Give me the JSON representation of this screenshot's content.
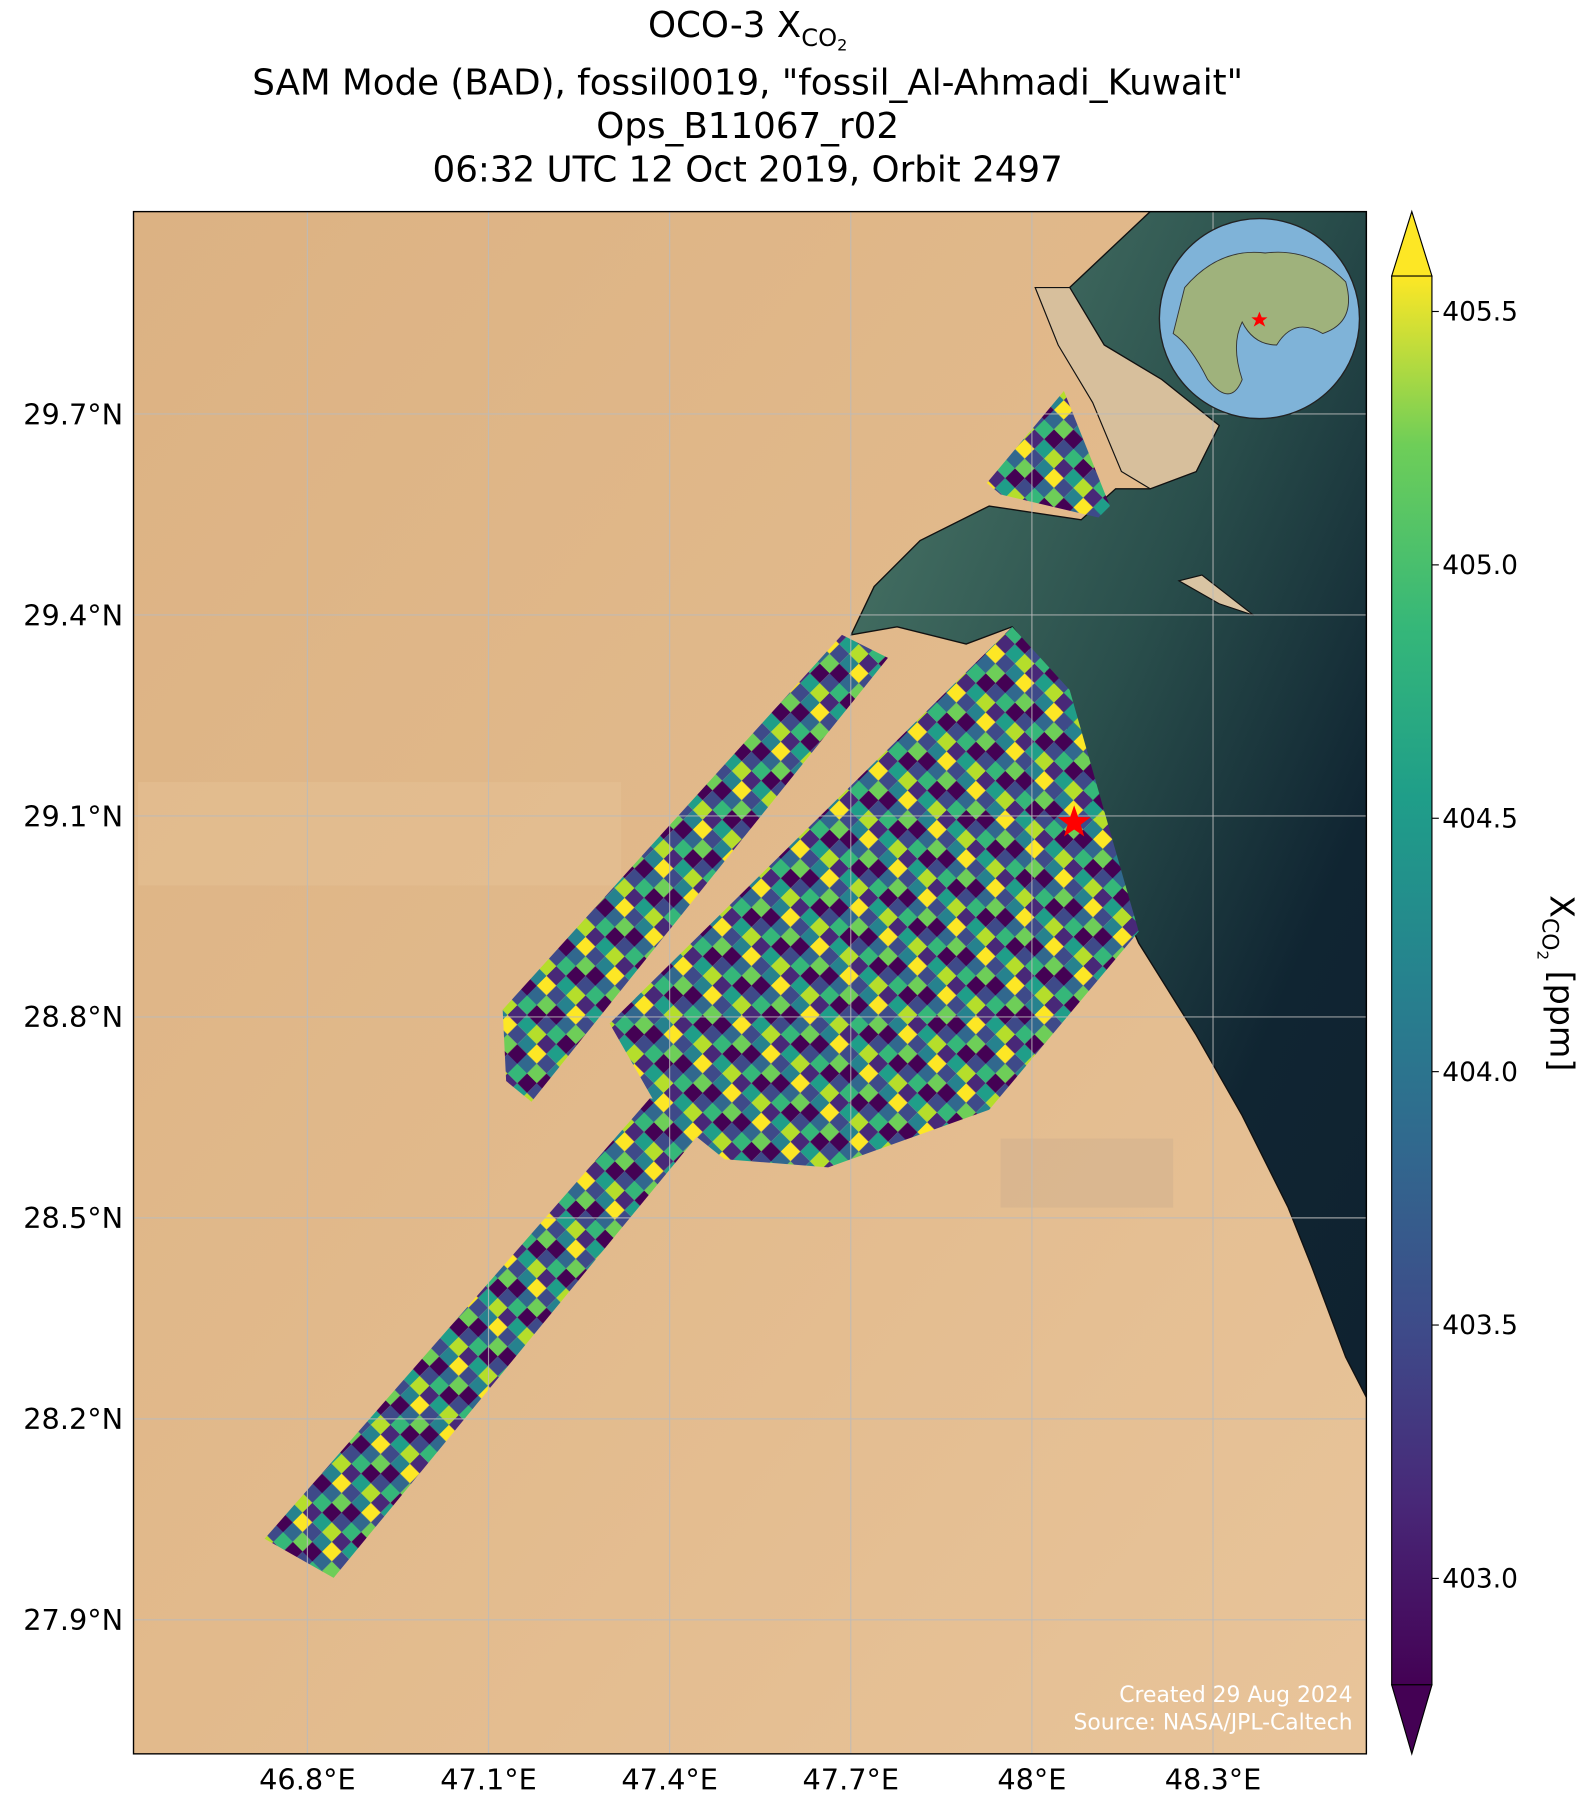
{
  "chart_data": {
    "type": "map",
    "title_parts": [
      "OCO-3 X",
      "CO",
      "2"
    ],
    "subtitle_lines": [
      "SAM Mode (BAD), fossil0019, \"fossil_Al-Ahmadi_Kuwait\"",
      "Ops_B11067_r02",
      "06:32 UTC 12 Oct 2019, Orbit 2497"
    ],
    "xlim": [
      46.512,
      48.554
    ],
    "ylim": [
      27.7,
      30.002
    ],
    "xticks": [
      {
        "value": 46.8,
        "label": "46.8°E"
      },
      {
        "value": 47.1,
        "label": "47.1°E"
      },
      {
        "value": 47.4,
        "label": "47.4°E"
      },
      {
        "value": 47.7,
        "label": "47.7°E"
      },
      {
        "value": 48.0,
        "label": "48°E"
      },
      {
        "value": 48.3,
        "label": "48.3°E"
      }
    ],
    "yticks": [
      {
        "value": 27.9,
        "label": "27.9°N"
      },
      {
        "value": 28.2,
        "label": "28.2°N"
      },
      {
        "value": 28.5,
        "label": "28.5°N"
      },
      {
        "value": 28.8,
        "label": "28.8°N"
      },
      {
        "value": 29.1,
        "label": "29.1°N"
      },
      {
        "value": 29.4,
        "label": "29.4°N"
      },
      {
        "value": 29.7,
        "label": "29.7°N"
      }
    ],
    "grid": true,
    "site": {
      "lon": 48.07,
      "lat": 29.09,
      "color": "#ff0000"
    },
    "colorbar": {
      "label_parts": [
        "X",
        "CO",
        "2",
        " [ppm]"
      ],
      "clim": [
        402.79,
        405.57
      ],
      "ticks": [
        {
          "value": 403.0,
          "label": "403.0"
        },
        403.5,
        {
          "value": 404.0,
          "label": "404.0"
        },
        404.5,
        {
          "value": 405.0,
          "label": "405.0"
        },
        405.5
      ],
      "colormap": "viridis"
    },
    "annotations": [
      "Created 29 Aug 2024",
      "Source: NASA/JPL-Caltech"
    ]
  }
}
